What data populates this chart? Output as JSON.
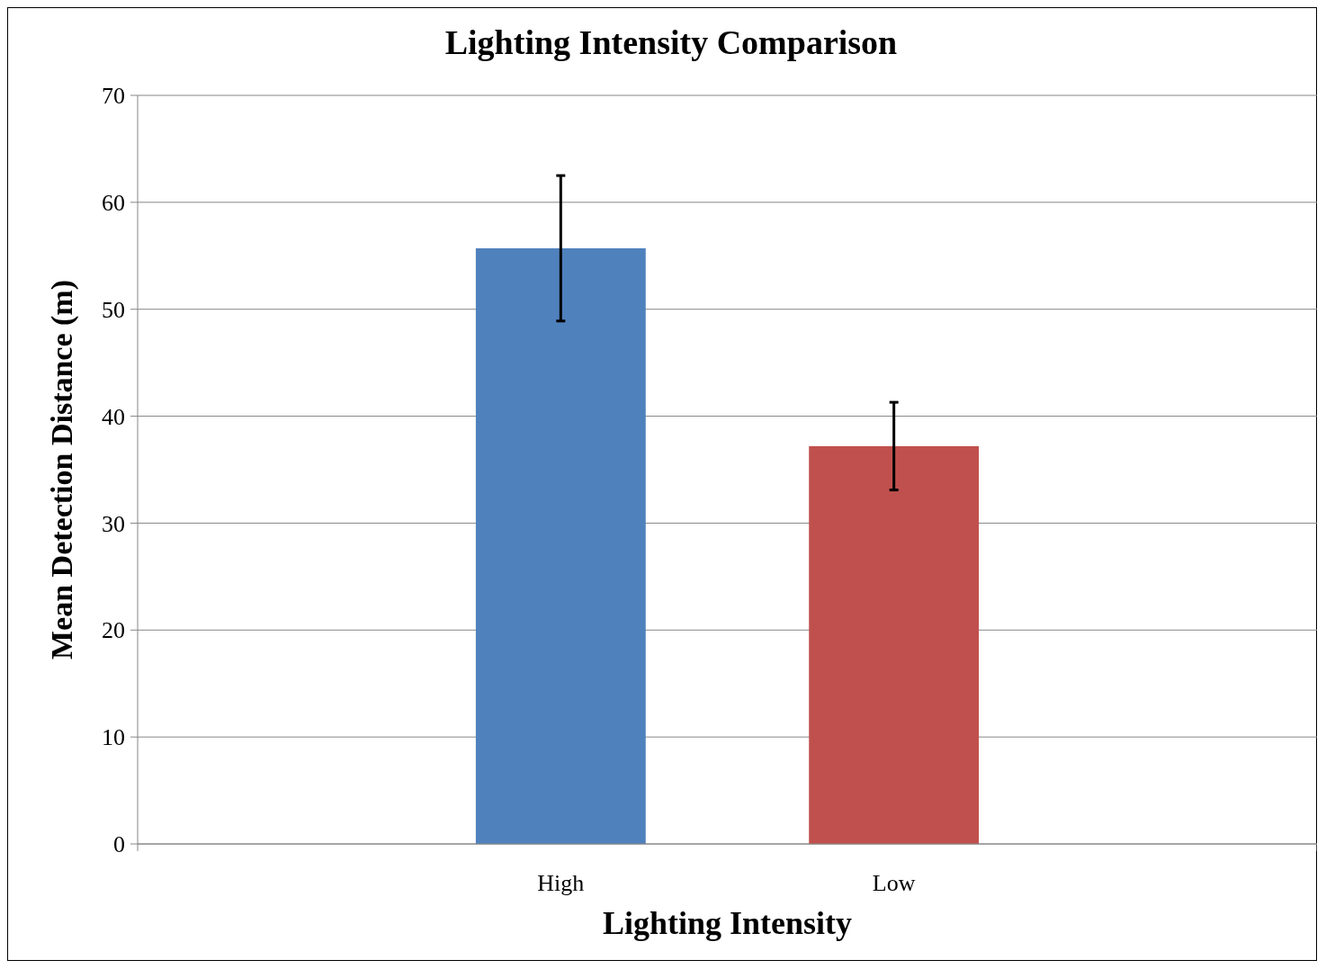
{
  "chart_data": {
    "type": "bar",
    "title": "Lighting Intensity Comparison",
    "xlabel": "Lighting Intensity",
    "ylabel": "Mean Detection Distance (m)",
    "categories": [
      "High",
      "Low"
    ],
    "values": [
      55.7,
      37.2
    ],
    "colors": [
      "#4f81bd",
      "#c0504d"
    ],
    "errors": [
      6.8,
      4.1
    ],
    "ylim": [
      0,
      70
    ],
    "yticks": [
      0,
      10,
      20,
      30,
      40,
      50,
      60,
      70
    ],
    "grid": "y"
  }
}
